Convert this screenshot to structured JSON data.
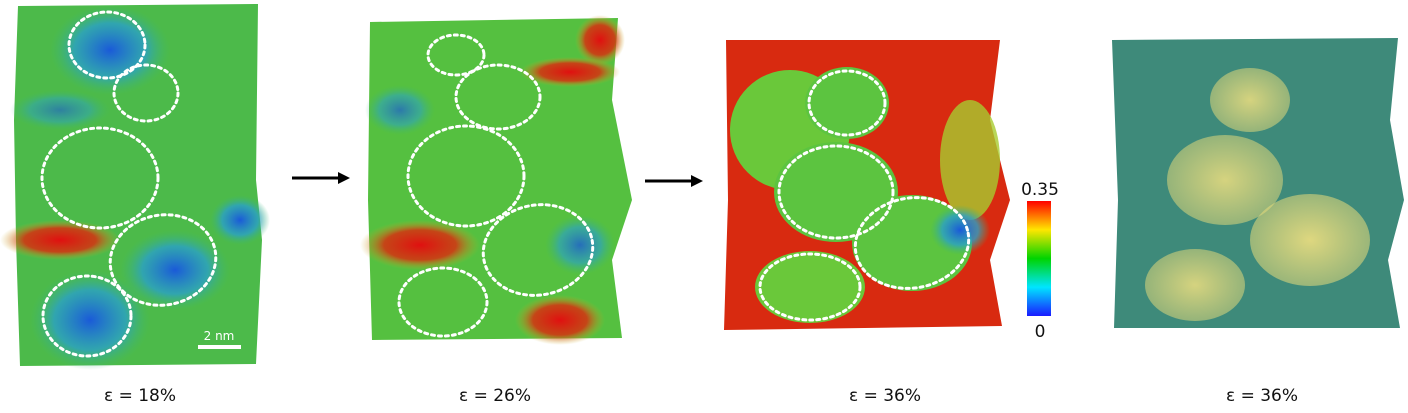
{
  "panels": [
    {
      "caption": "ε = 18%",
      "scale_bar": "2 nm"
    },
    {
      "caption": "ε = 26%"
    },
    {
      "caption": "ε = 36%"
    },
    {
      "caption": "ε = 36%"
    }
  ],
  "colorbar": {
    "max_label": "0.35",
    "min_label": "0",
    "colormap": [
      "#1a1aff",
      "#00e5ff",
      "#00d400",
      "#ffe600",
      "#ff0000"
    ]
  },
  "colors": {
    "yellow_region": "#e9dc7a",
    "matrix_teal": "#3e8a7a"
  }
}
